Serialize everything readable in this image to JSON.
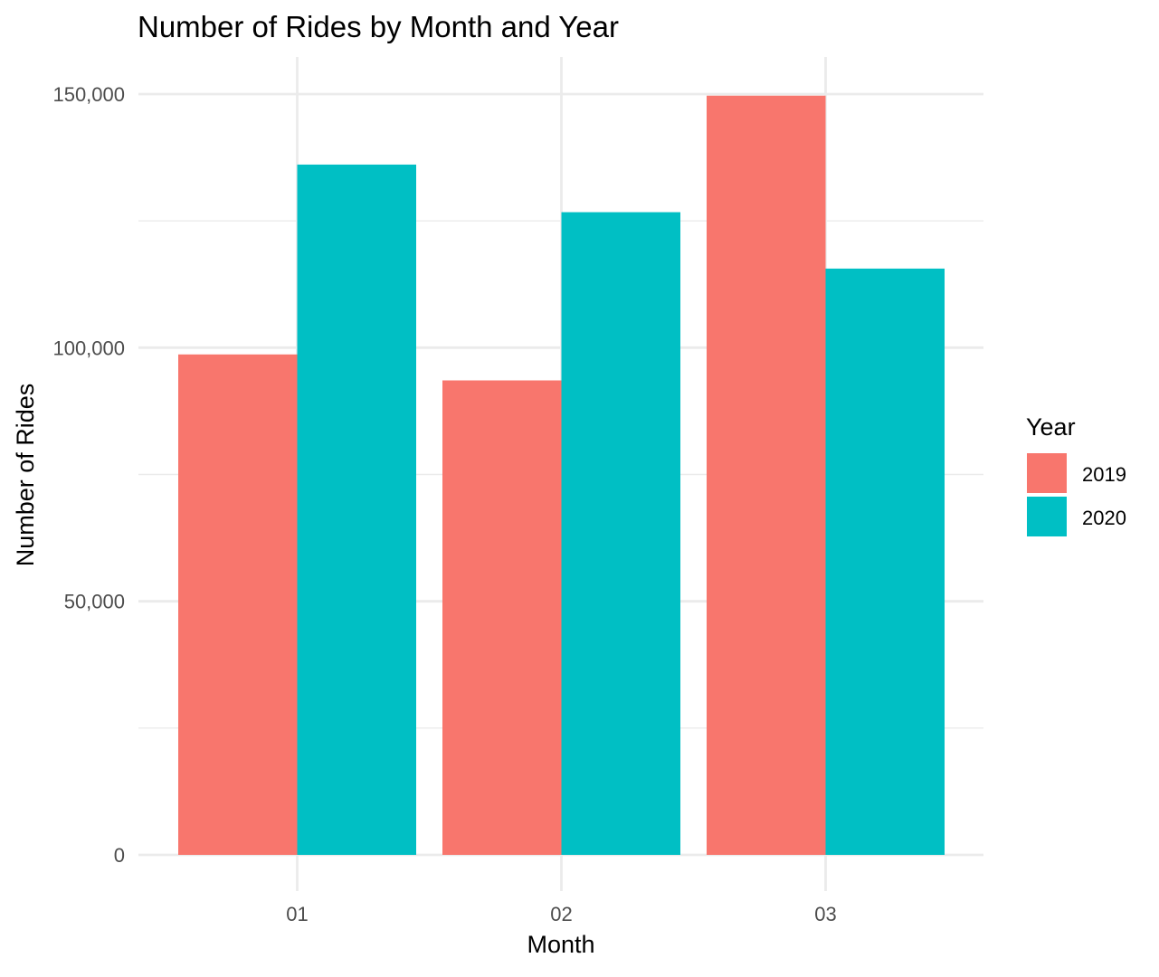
{
  "chart_data": {
    "type": "bar",
    "title": "Number of Rides by Month and Year",
    "xlabel": "Month",
    "ylabel": "Number of Rides",
    "categories": [
      "01",
      "02",
      "03"
    ],
    "series": [
      {
        "name": "2019",
        "values": [
          98670,
          93548,
          149688
        ],
        "color": "#F8766D"
      },
      {
        "name": "2020",
        "values": [
          136099,
          126715,
          115593
        ],
        "color": "#00BFC4"
      }
    ],
    "ylim": [
      0,
      157500
    ],
    "yticks": [
      0,
      50000,
      100000,
      150000
    ],
    "ytick_labels": [
      "0",
      "50,000",
      "100,000",
      "150,000"
    ],
    "grid": true,
    "legend": {
      "title": "Year",
      "position": "right",
      "entries": [
        "2019",
        "2020"
      ]
    }
  }
}
